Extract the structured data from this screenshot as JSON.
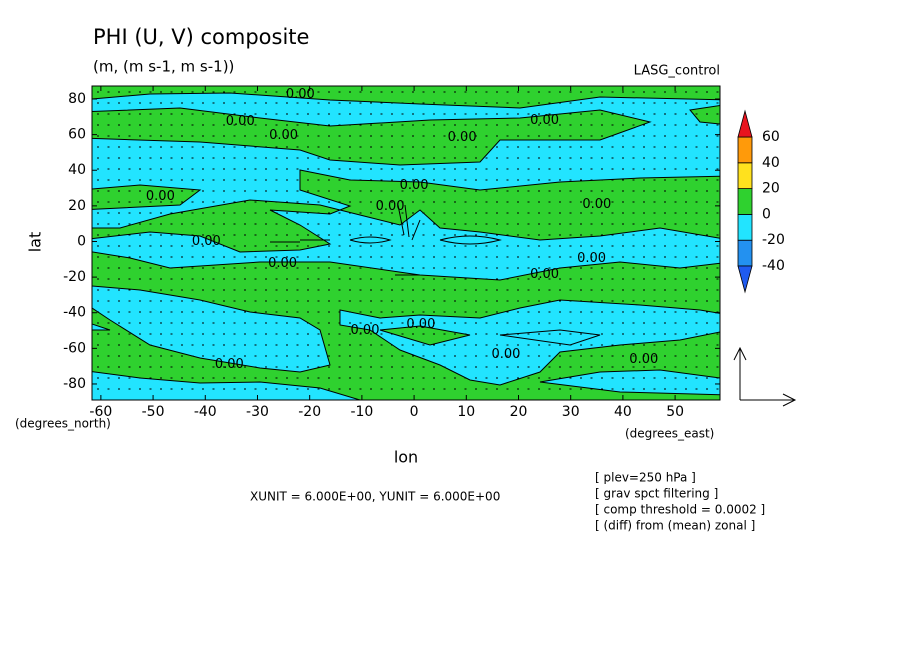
{
  "chart_data": {
    "type": "contour",
    "title": "PHI (U, V) composite",
    "subtitle": "(m, (m s-1, m s-1))",
    "run_label": "LASG_control",
    "x_label": "lon",
    "y_label": "lat",
    "x_unit": "(degrees_east)",
    "y_unit": "(degrees_north)",
    "xlim": [
      -61.7,
      58.6
    ],
    "xticks": [
      -60,
      -50,
      -40,
      -30,
      -20,
      -10,
      0,
      10,
      20,
      30,
      40,
      50
    ],
    "ylim": [
      -89,
      87.3
    ],
    "yticks": [
      -80,
      -60,
      -40,
      -20,
      0,
      20,
      40,
      60,
      80
    ],
    "colorbar": {
      "levels": [
        -40,
        -20,
        0,
        20,
        40,
        60
      ],
      "colors": [
        "#1f5bf0",
        "#2391f0",
        "#22e4ff",
        "#2fd12f",
        "#ffe11e",
        "#ff9a0a",
        "#e8141e"
      ]
    },
    "contour_labels": [
      {
        "text": "0.00",
        "lon": -21.8,
        "lat": 82.6
      },
      {
        "text": "0.00",
        "lon": -33.3,
        "lat": 67.4
      },
      {
        "text": "0.00",
        "lon": -25,
        "lat": 59.6
      },
      {
        "text": "0.00",
        "lon": 9.2,
        "lat": 58.4
      },
      {
        "text": "0.00",
        "lon": 25,
        "lat": 68
      },
      {
        "text": "0.00",
        "lon": 0,
        "lat": 31.5
      },
      {
        "text": "0.00",
        "lon": -4.6,
        "lat": 19.7
      },
      {
        "text": "0.00",
        "lon": 35,
        "lat": 20.8
      },
      {
        "text": "0.00",
        "lon": -48.6,
        "lat": 25.3
      },
      {
        "text": "0.00",
        "lon": -39.8,
        "lat": 0
      },
      {
        "text": "0.00",
        "lon": -25.2,
        "lat": -12.4
      },
      {
        "text": "0.00",
        "lon": 25,
        "lat": -18.5
      },
      {
        "text": "0.00",
        "lon": 34,
        "lat": -9.6
      },
      {
        "text": "0.00",
        "lon": -9.4,
        "lat": -50
      },
      {
        "text": "0.00",
        "lon": 1.3,
        "lat": -46.6
      },
      {
        "text": "0.00",
        "lon": 17.6,
        "lat": -63.5
      },
      {
        "text": "0.00",
        "lon": 44,
        "lat": -66.3
      },
      {
        "text": "0.00",
        "lon": -35.4,
        "lat": -69.1
      }
    ],
    "vector_unit": "XUNIT = 6.000E+00, YUNIT = 6.000E+00",
    "notes": [
      "[ plev=250 hPa ]",
      "[ grav spct filtering ]",
      "[ comp threshold = 0.0002 ]",
      "[ (diff) from (mean) zonal ]"
    ]
  }
}
